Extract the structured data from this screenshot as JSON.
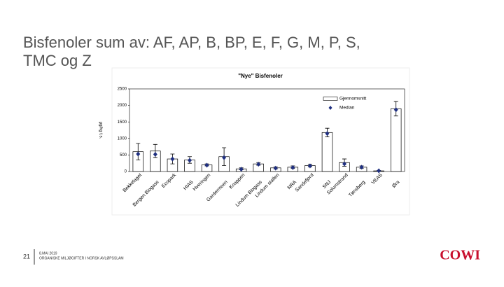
{
  "slide_title": [
    "Bisfenoler sum av: AF, AP, B, BP, E, F, G, M, P, S,",
    "TMC og Z"
  ],
  "footer": {
    "page": "21",
    "date": "8.MAI 2019",
    "subtitle": "ORGANISKE MILJØGIFTER I NORSK AVLØPSSLAM",
    "logo": "COWI"
  },
  "chart_data": {
    "type": "bar",
    "title": "\"Nye\" Bisfenoler",
    "y_label": "µg/kg t.s.",
    "categories": [
      "Bekkelaget",
      "Bergen Biogass",
      "Ecopark",
      "HIAS",
      "Hveringen",
      "Gardermoen",
      "Knappen",
      "Lindum Biogass",
      "Lindum stallen",
      "NRA",
      "Sandefjord",
      "SNJ",
      "Solumstrand",
      "Tønsberg",
      "VEAS",
      "Øra"
    ],
    "series": [
      {
        "name": "Gjennomsnitt",
        "color": "#ffffff",
        "values": [
          600,
          620,
          380,
          350,
          200,
          450,
          80,
          230,
          110,
          130,
          180,
          1180,
          270,
          130,
          20,
          1900
        ],
        "errors": [
          250,
          200,
          150,
          100,
          30,
          270,
          30,
          40,
          30,
          40,
          40,
          130,
          110,
          40,
          10,
          220
        ]
      },
      {
        "name": "Median",
        "color": "#1f2f80",
        "values": [
          530,
          520,
          380,
          340,
          190,
          420,
          70,
          220,
          100,
          120,
          170,
          1150,
          230,
          130,
          20,
          1870
        ]
      }
    ],
    "ylim": [
      0,
      2500
    ],
    "yticks": [
      0,
      500,
      1000,
      1500,
      2000,
      2500
    ]
  }
}
